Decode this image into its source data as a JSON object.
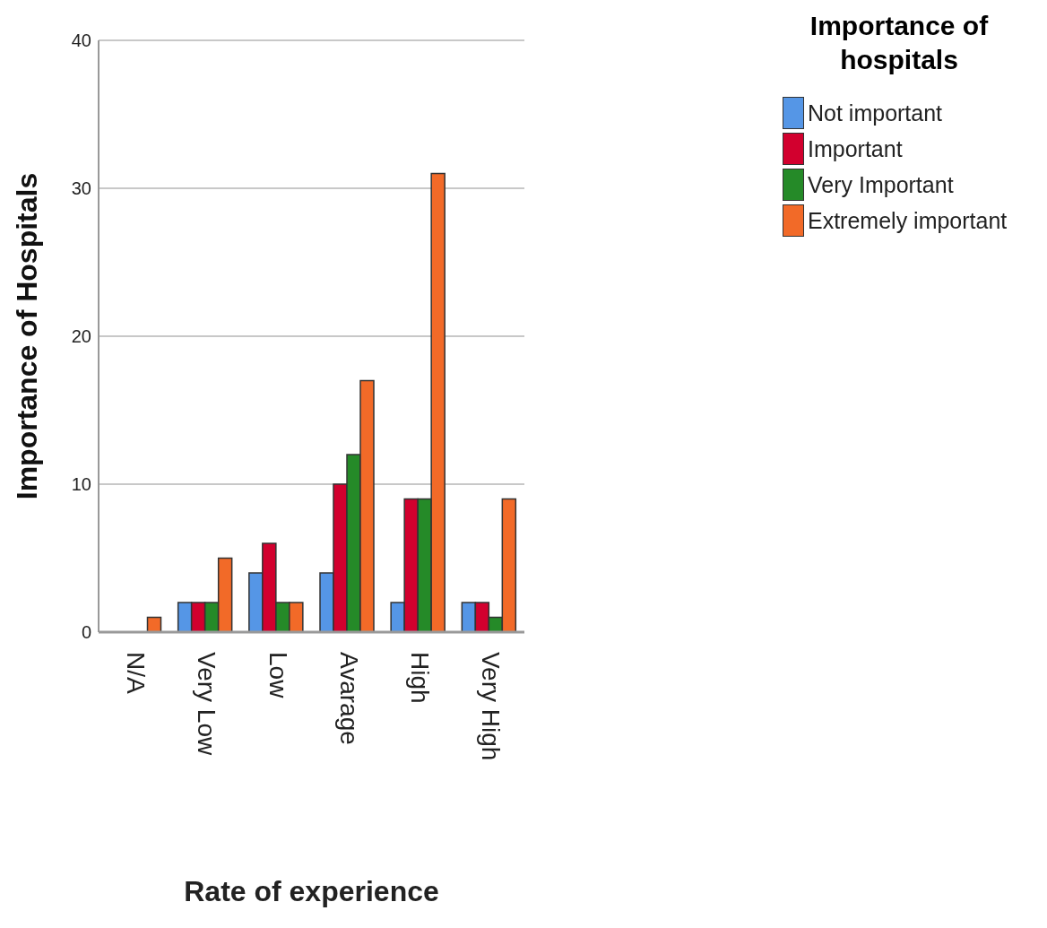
{
  "chart_data": {
    "type": "bar",
    "xlabel": "Rate of experience",
    "ylabel": "Importance of Hospitals",
    "legend_title": "Importance of hospitals",
    "categories": [
      "N/A",
      "Very Low",
      "Low",
      "Avarage",
      "High",
      "Very High"
    ],
    "series": [
      {
        "name": "Not important",
        "color": "#5596e6",
        "values": [
          0,
          2,
          4,
          4,
          2,
          2
        ]
      },
      {
        "name": "Important",
        "color": "#d2002e",
        "values": [
          0,
          2,
          6,
          10,
          9,
          2
        ]
      },
      {
        "name": "Very Important",
        "color": "#258a28",
        "values": [
          0,
          2,
          2,
          12,
          9,
          1
        ]
      },
      {
        "name": "Extremely important",
        "color": "#f26a28",
        "values": [
          1,
          5,
          2,
          17,
          31,
          9
        ]
      }
    ],
    "ylim": [
      0,
      40
    ],
    "yticks": [
      0,
      10,
      20,
      30,
      40
    ],
    "grid": "y",
    "legend": "top right"
  }
}
